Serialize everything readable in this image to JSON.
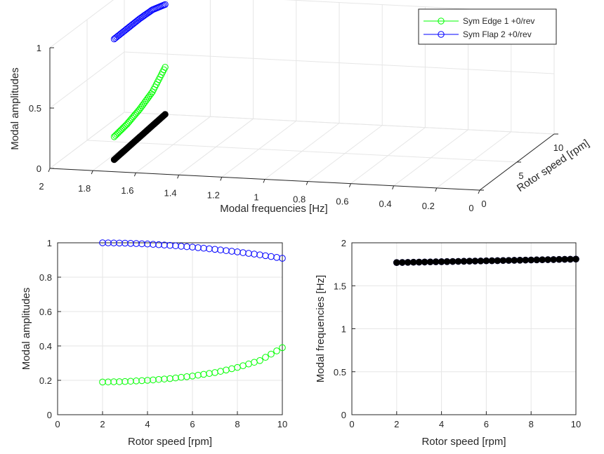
{
  "chart_data": [
    {
      "type": "scatter",
      "view": "3d",
      "xlabel": "Modal frequencies [Hz]",
      "ylabel": "Rotor speed [rpm]",
      "zlabel": "Modal amplitudes",
      "xticks": [
        "2",
        "1.8",
        "1.6",
        "1.4",
        "1.2",
        "1",
        "0.8",
        "0.6",
        "0.4",
        "0.2",
        "0"
      ],
      "yticks": [
        "0",
        "5",
        "10"
      ],
      "zticks": [
        "0",
        "0.5",
        "1"
      ],
      "xlim": [
        0,
        2
      ],
      "ylim": [
        0,
        10
      ],
      "zlim": [
        0,
        1
      ],
      "grid": true,
      "legend_position": "top-right",
      "series": [
        {
          "name": "Sym Edge 1 +0/rev",
          "color": "#00ff00",
          "marker": "circle-open",
          "x": [
            1.77,
            1.78,
            1.79,
            1.8,
            1.81
          ],
          "y": [
            2,
            4,
            6,
            8,
            10
          ],
          "z": [
            0.19,
            0.2,
            0.23,
            0.28,
            0.39
          ]
        },
        {
          "name": "Sym Flap 2 +0/rev",
          "color": "#0000ff",
          "marker": "circle-open",
          "x": [
            1.77,
            1.78,
            1.79,
            1.8,
            1.81
          ],
          "y": [
            2,
            4,
            6,
            8,
            10
          ],
          "z": [
            1.0,
            0.99,
            0.98,
            0.96,
            0.91
          ]
        },
        {
          "name": "",
          "color": "#000000",
          "marker": "circle-filled",
          "x": [
            1.77,
            1.78,
            1.79,
            1.8,
            1.81
          ],
          "y": [
            2,
            4,
            6,
            8,
            10
          ],
          "z": [
            0,
            0,
            0,
            0,
            0
          ]
        }
      ]
    },
    {
      "type": "scatter",
      "xlabel": "Rotor speed [rpm]",
      "ylabel": "Modal amplitudes",
      "xlim": [
        0,
        10
      ],
      "ylim": [
        0,
        1
      ],
      "xticks": [
        "0",
        "2",
        "4",
        "6",
        "8",
        "10"
      ],
      "yticks": [
        "0",
        "0.2",
        "0.4",
        "0.6",
        "0.8",
        "1"
      ],
      "grid": true,
      "series": [
        {
          "name": "Sym Edge 1 +0/rev",
          "color": "#00ff00",
          "x": [
            2,
            3,
            4,
            5,
            6,
            7,
            8,
            9,
            10
          ],
          "y": [
            0.19,
            0.193,
            0.2,
            0.21,
            0.225,
            0.245,
            0.275,
            0.315,
            0.39
          ]
        },
        {
          "name": "Sym Flap 2 +0/rev",
          "color": "#0000ff",
          "x": [
            2,
            3,
            4,
            5,
            6,
            7,
            8,
            9,
            10
          ],
          "y": [
            1.0,
            0.998,
            0.993,
            0.985,
            0.975,
            0.962,
            0.947,
            0.93,
            0.91
          ]
        }
      ]
    },
    {
      "type": "scatter",
      "xlabel": "Rotor speed [rpm]",
      "ylabel": "Modal frequencies [Hz]",
      "xlim": [
        0,
        10
      ],
      "ylim": [
        0,
        2
      ],
      "xticks": [
        "0",
        "2",
        "4",
        "6",
        "8",
        "10"
      ],
      "yticks": [
        "0",
        "0.5",
        "1",
        "1.5",
        "2"
      ],
      "grid": true,
      "series": [
        {
          "name": "Sym Flap 2 +0/rev",
          "color": "#0000ff",
          "x": [
            2,
            4,
            6,
            8,
            10
          ],
          "y": [
            1.77,
            1.78,
            1.79,
            1.8,
            1.81
          ]
        },
        {
          "name": "",
          "color": "#000000",
          "x": [
            2,
            4,
            6,
            8,
            10
          ],
          "y": [
            1.77,
            1.78,
            1.79,
            1.8,
            1.81
          ]
        }
      ]
    }
  ]
}
